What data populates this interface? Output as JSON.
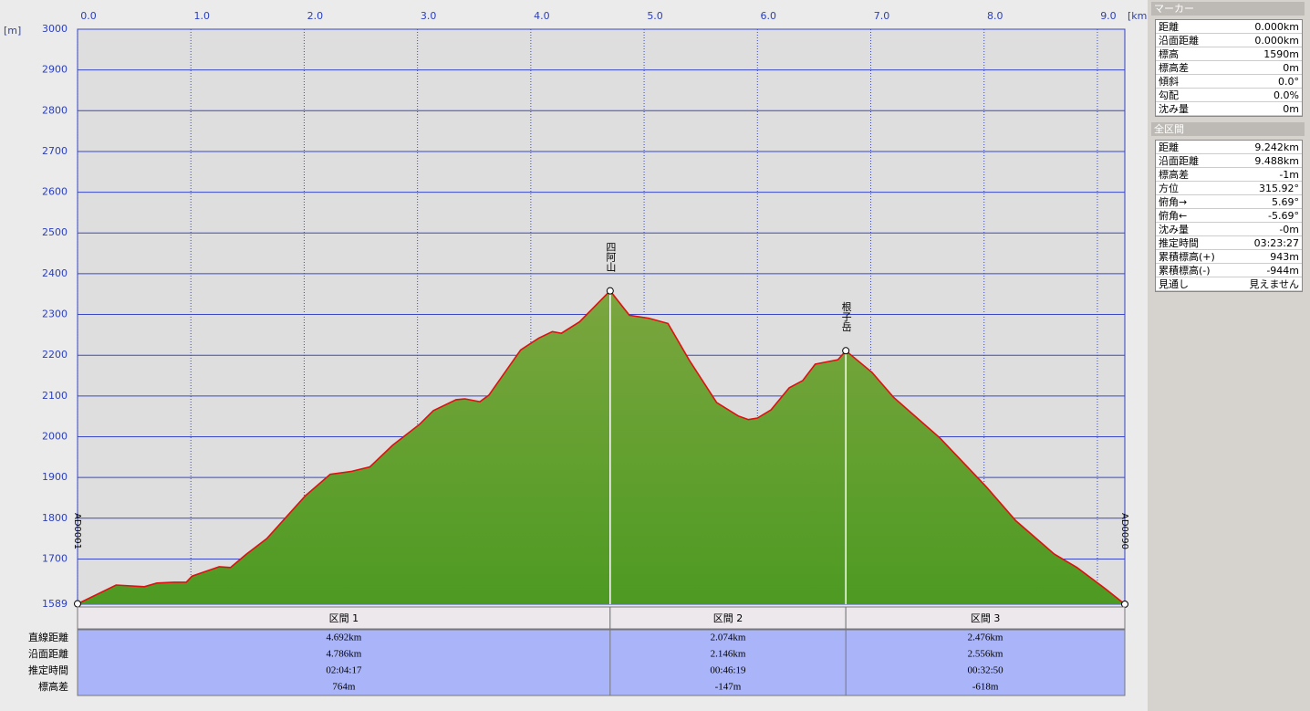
{
  "chart_data": {
    "type": "area",
    "x_label": "[km]",
    "y_label": "[m]",
    "x": [
      0,
      0.34,
      0.59,
      0.7,
      0.85,
      0.96,
      1.01,
      1.25,
      1.35,
      1.49,
      1.67,
      2.01,
      2.23,
      2.42,
      2.58,
      2.78,
      3.02,
      3.14,
      3.34,
      3.42,
      3.55,
      3.63,
      3.91,
      4.07,
      4.19,
      4.27,
      4.43,
      4.7,
      4.87,
      5.04,
      5.21,
      5.4,
      5.64,
      5.83,
      5.92,
      6.0,
      6.12,
      6.28,
      6.4,
      6.51,
      6.71,
      6.78,
      7.01,
      7.2,
      7.61,
      8.02,
      8.28,
      8.62,
      8.82,
      9.07,
      9.242
    ],
    "series": [
      {
        "color": "#e01010",
        "fill": "#5f9c2e",
        "values": [
          1590,
          1636,
          1632,
          1641,
          1643,
          1643,
          1658,
          1681,
          1679,
          1712,
          1750,
          1855,
          1908,
          1915,
          1926,
          1979,
          2031,
          2064,
          2091,
          2093,
          2086,
          2102,
          2213,
          2242,
          2258,
          2254,
          2282,
          2358,
          2298,
          2291,
          2278,
          2187,
          2084,
          2051,
          2042,
          2046,
          2066,
          2120,
          2138,
          2178,
          2189,
          2211,
          2158,
          2097,
          1997,
          1877,
          1794,
          1712,
          1679,
          1627,
          1589
        ]
      }
    ],
    "xlim": [
      0,
      9.242
    ],
    "ylim": [
      1589,
      3000
    ],
    "xticks": [
      {
        "value": 0,
        "label": "0.0"
      },
      {
        "value": 1,
        "label": "1.0"
      },
      {
        "value": 2,
        "label": "2.0"
      },
      {
        "value": 3,
        "label": "3.0"
      },
      {
        "value": 4,
        "label": "4.0"
      },
      {
        "value": 5,
        "label": "5.0"
      },
      {
        "value": 6,
        "label": "6.0"
      },
      {
        "value": 7,
        "label": "7.0"
      },
      {
        "value": 8,
        "label": "8.0"
      },
      {
        "value": 9,
        "label": "9.0"
      }
    ],
    "yticks": [
      1589,
      1700,
      1800,
      1900,
      2000,
      2100,
      2200,
      2300,
      2400,
      2500,
      2600,
      2700,
      2800,
      2900,
      3000
    ],
    "grid": true,
    "waypoints": [
      {
        "name": "AD0001",
        "x": 0,
        "y": 1590
      },
      {
        "name": "四阿山",
        "x": 4.7,
        "y": 2358
      },
      {
        "name": "根子岳",
        "x": 6.78,
        "y": 2211
      },
      {
        "name": "AD0090",
        "x": 9.242,
        "y": 1589
      }
    ]
  },
  "sections": {
    "headers": [
      "区間 1",
      "区間 2",
      "区間 3"
    ],
    "row_labels": [
      "直線距離",
      "沿面距離",
      "推定時間",
      "標高差"
    ],
    "rows": [
      [
        "4.692km",
        "2.074km",
        "2.476km"
      ],
      [
        "4.786km",
        "2.146km",
        "2.556km"
      ],
      [
        "02:04:17",
        "00:46:19",
        "00:32:50"
      ],
      [
        "764m",
        "-147m",
        "-618m"
      ]
    ]
  },
  "marker_panel": {
    "title": "マーカー",
    "rows": [
      [
        "距離",
        "0.000km"
      ],
      [
        "沿面距離",
        "0.000km"
      ],
      [
        "標高",
        "1590m"
      ],
      [
        "標高差",
        "0m"
      ],
      [
        "傾斜",
        "0.0°"
      ],
      [
        "勾配",
        "0.0%"
      ],
      [
        "沈み量",
        "0m"
      ]
    ]
  },
  "total_panel": {
    "title": "全区間",
    "rows": [
      [
        "距離",
        "9.242km"
      ],
      [
        "沿面距離",
        "9.488km"
      ],
      [
        "標高差",
        "-1m"
      ],
      [
        "方位",
        "315.92°"
      ],
      [
        "俯角→",
        "5.69°"
      ],
      [
        "俯角←",
        "-5.69°"
      ],
      [
        "沈み量",
        "-0m"
      ],
      [
        "推定時間",
        "03:23:27"
      ],
      [
        "累積標高(+)",
        "943m"
      ],
      [
        "累積標高(-)",
        "-944m"
      ],
      [
        "見通し",
        "見えません"
      ]
    ]
  }
}
